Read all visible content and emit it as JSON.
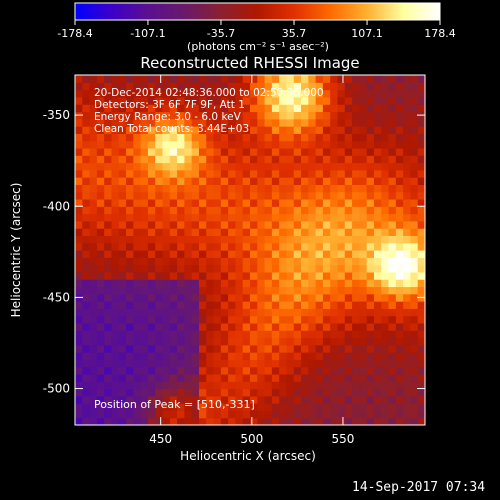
{
  "colorbar": {
    "ticks": [
      "-178.4",
      "-107.1",
      "-35.7",
      "35.7",
      "107.1",
      "178.4"
    ],
    "units_label": "(photons cm⁻² s⁻¹ asec⁻²)",
    "range": [
      -178.4,
      178.4
    ],
    "colormap": [
      "#0000ff",
      "#3d00c8",
      "#5a1090",
      "#6a1a6a",
      "#8a2030",
      "#b01800",
      "#e03000",
      "#ff6a00",
      "#ffb030",
      "#ffffa0",
      "#ffffff"
    ]
  },
  "chart_data": {
    "type": "heatmap",
    "title": "Reconstructed RHESSI Image",
    "xlabel": "Heliocentric X (arcsec)",
    "ylabel": "Heliocentric Y (arcsec)",
    "xlim": [
      403,
      595
    ],
    "ylim": [
      -520,
      -328
    ],
    "x_ticks": [
      450,
      500,
      550
    ],
    "y_ticks": [
      -350,
      -400,
      -450,
      -500
    ],
    "annotations": [
      "20-Dec-2014 02:48:36.000 to 02:50:36.000",
      "Detectors: 3F 6F 7F 9F, Att 1",
      "Energy Range: 3.0 - 6.0 keV",
      "Clean     Total counts: 3.44E+03"
    ],
    "peak_label": "Position of Peak = [510,-331]",
    "peak": {
      "x": 510,
      "y": -331
    },
    "sources": [
      {
        "x": 520,
        "y": -340,
        "amp": 178.4,
        "sigma": 16
      },
      {
        "x": 455,
        "y": -368,
        "amp": 120,
        "sigma": 12
      },
      {
        "x": 580,
        "y": -435,
        "amp": 130,
        "sigma": 12
      },
      {
        "x": 455,
        "y": -515,
        "amp": 95,
        "sigma": 10
      }
    ]
  },
  "footer": {
    "date": "14-Sep-2017 07:34"
  }
}
